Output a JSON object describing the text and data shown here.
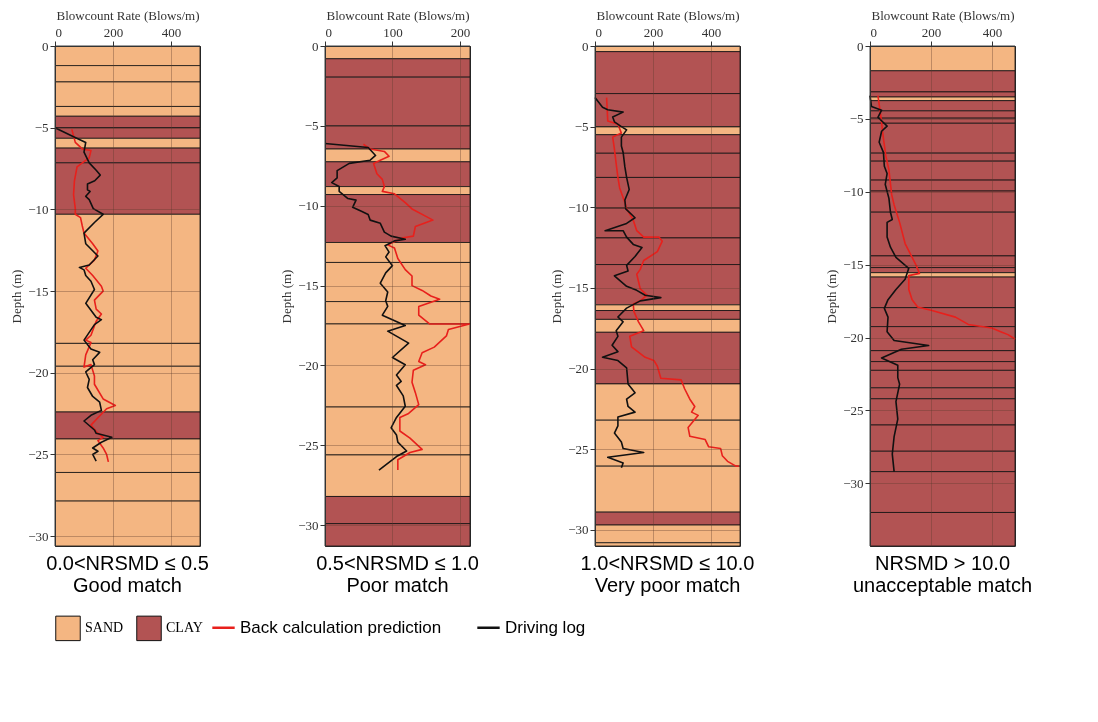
{
  "chart_data": [
    {
      "type": "line",
      "title": "0.0<NRSMD ≤ 0.5",
      "subtitle": "Good match",
      "xlabel": "Blowcount Rate (Blows/m)",
      "ylabel": "Depth (m)",
      "xlim": [
        0,
        500
      ],
      "xticks": [
        0,
        200,
        400
      ],
      "ylim": [
        -30.6,
        0
      ],
      "yticks": [
        0,
        -5,
        -10,
        -15,
        -20,
        -25,
        -30
      ],
      "grid": true,
      "legend": "bottom",
      "annotations": [
        "SAND",
        "CLAY"
      ],
      "bands": [
        {
          "axis": "y",
          "from": 0,
          "to": -1.2,
          "color": "#f4b682"
        },
        {
          "axis": "y",
          "from": -1.2,
          "to": -2.2,
          "color": "#f4b682"
        },
        {
          "axis": "y",
          "from": -2.2,
          "to": -3.7,
          "color": "#f4b682"
        },
        {
          "axis": "y",
          "from": -3.7,
          "to": -4.3,
          "color": "#f4b682"
        },
        {
          "axis": "y",
          "from": -4.3,
          "to": -5.0,
          "color": "#b25353"
        },
        {
          "axis": "y",
          "from": -5.0,
          "to": -5.65,
          "color": "#b25353"
        },
        {
          "axis": "y",
          "from": -5.65,
          "to": -6.25,
          "color": "#f4b682"
        },
        {
          "axis": "y",
          "from": -6.25,
          "to": -7.15,
          "color": "#b25353"
        },
        {
          "axis": "y",
          "from": -7.15,
          "to": -10.3,
          "color": "#b25353"
        },
        {
          "axis": "y",
          "from": -10.3,
          "to": -18.2,
          "color": "#f4b682"
        },
        {
          "axis": "y",
          "from": -18.2,
          "to": -19.6,
          "color": "#f4b682"
        },
        {
          "axis": "y",
          "from": -19.6,
          "to": -22.4,
          "color": "#f4b682"
        },
        {
          "axis": "y",
          "from": -22.4,
          "to": -24.05,
          "color": "#b25353"
        },
        {
          "axis": "y",
          "from": -24.05,
          "to": -26.1,
          "color": "#f4b682"
        },
        {
          "axis": "y",
          "from": -26.1,
          "to": -27.85,
          "color": "#f4b682"
        },
        {
          "axis": "y",
          "from": -27.85,
          "to": -30.6,
          "color": "#f4b682"
        }
      ],
      "series": [
        {
          "name": "Back calculation prediction",
          "color": "#e8201c",
          "x": [
            58,
            70,
            94,
            124,
            118,
            94,
            76,
            67,
            64,
            70,
            70,
            88,
            94,
            100,
            130,
            148,
            136,
            106,
            130,
            160,
            166,
            136,
            142,
            160,
            142,
            124,
            106,
            124,
            106,
            100,
            124,
            136,
            136,
            166,
            208,
            178,
            148,
            124,
            142,
            166,
            148,
            166,
            178,
            184
          ],
          "values": [
            -5.1,
            -5.9,
            -6.3,
            -6.4,
            -6.85,
            -7.15,
            -7.4,
            -8.25,
            -9.1,
            -9.95,
            -10.3,
            -10.5,
            -11.0,
            -11.45,
            -12.1,
            -12.55,
            -13.1,
            -13.6,
            -14.05,
            -14.7,
            -15.0,
            -15.55,
            -16.1,
            -16.4,
            -16.85,
            -17.7,
            -18.0,
            -18.15,
            -18.9,
            -19.65,
            -19.5,
            -20.2,
            -20.7,
            -21.6,
            -22.0,
            -22.2,
            -22.75,
            -23.2,
            -23.6,
            -23.95,
            -24.15,
            -24.6,
            -25.0,
            -25.45
          ]
        },
        {
          "name": "Driving log",
          "color": "#111111",
          "x": [
            0,
            64,
            106,
            100,
            118,
            142,
            156,
            137,
            112,
            112,
            121,
            106,
            118,
            132,
            166,
            136,
            100,
            106,
            148,
            118,
            84,
            100,
            106,
            124,
            136,
            106,
            142,
            160,
            136,
            100,
            124,
            154,
            130,
            136,
            106,
            118,
            112,
            130,
            154,
            160,
            124,
            100,
            136,
            142,
            196,
            160,
            130,
            148,
            130,
            142
          ],
          "values": [
            -5.0,
            -5.55,
            -5.9,
            -6.5,
            -7.15,
            -7.6,
            -7.9,
            -8.25,
            -8.45,
            -8.8,
            -8.9,
            -9.2,
            -9.4,
            -9.95,
            -10.3,
            -10.8,
            -11.45,
            -12.1,
            -12.85,
            -13.4,
            -13.55,
            -13.7,
            -14.05,
            -14.4,
            -14.9,
            -15.75,
            -16.6,
            -16.75,
            -17.05,
            -18.0,
            -18.55,
            -18.75,
            -19.2,
            -19.5,
            -19.95,
            -20.4,
            -20.9,
            -21.45,
            -21.8,
            -22.3,
            -22.6,
            -22.95,
            -23.5,
            -23.7,
            -23.95,
            -24.25,
            -24.6,
            -24.8,
            -25.0,
            -25.4
          ]
        }
      ]
    },
    {
      "type": "line",
      "title": "0.5<NRSMD ≤ 1.0",
      "subtitle": "Poor match",
      "xlabel": "Blowcount Rate (Blows/m)",
      "ylabel": "Depth (m)",
      "xlim": [
        0,
        215
      ],
      "xticks": [
        0,
        100,
        200
      ],
      "ylim": [
        -31.3,
        0
      ],
      "yticks": [
        0,
        -5,
        -10,
        -15,
        -20,
        -25,
        -30
      ],
      "grid": true,
      "legend": "bottom",
      "bands": [
        {
          "axis": "y",
          "from": 0,
          "to": -0.8,
          "color": "#f4b682"
        },
        {
          "axis": "y",
          "from": -0.8,
          "to": -1.95,
          "color": "#b25353"
        },
        {
          "axis": "y",
          "from": -1.95,
          "to": -5.0,
          "color": "#b25353"
        },
        {
          "axis": "y",
          "from": -5.0,
          "to": -6.45,
          "color": "#b25353"
        },
        {
          "axis": "y",
          "from": -6.45,
          "to": -7.25,
          "color": "#f4b682"
        },
        {
          "axis": "y",
          "from": -7.25,
          "to": -8.8,
          "color": "#b25353"
        },
        {
          "axis": "y",
          "from": -8.8,
          "to": -9.3,
          "color": "#f4b682"
        },
        {
          "axis": "y",
          "from": -9.3,
          "to": -12.3,
          "color": "#b25353"
        },
        {
          "axis": "y",
          "from": -12.3,
          "to": -13.55,
          "color": "#f4b682"
        },
        {
          "axis": "y",
          "from": -13.55,
          "to": -16.0,
          "color": "#f4b682"
        },
        {
          "axis": "y",
          "from": -16.0,
          "to": -17.4,
          "color": "#f4b682"
        },
        {
          "axis": "y",
          "from": -17.4,
          "to": -22.6,
          "color": "#f4b682"
        },
        {
          "axis": "y",
          "from": -22.6,
          "to": -25.6,
          "color": "#f4b682"
        },
        {
          "axis": "y",
          "from": -25.6,
          "to": -28.2,
          "color": "#f4b682"
        },
        {
          "axis": "y",
          "from": -28.2,
          "to": -29.9,
          "color": "#b25353"
        },
        {
          "axis": "y",
          "from": -29.9,
          "to": -31.3,
          "color": "#b25353"
        }
      ],
      "series": [
        {
          "name": "Back calculation prediction",
          "color": "#e8201c",
          "x": [
            57,
            67,
            88,
            95,
            82,
            72,
            77,
            85,
            88,
            85,
            103,
            119,
            129,
            149,
            160,
            134,
            131,
            116,
            106,
            93,
            103,
            108,
            119,
            129,
            129,
            144,
            157,
            170,
            139,
            139,
            155,
            196,
            214,
            183,
            180,
            162,
            144,
            139,
            149,
            131,
            129,
            134,
            139,
            124,
            111,
            111,
            126,
            144,
            126,
            108,
            108
          ],
          "values": [
            -6.15,
            -6.45,
            -6.6,
            -6.9,
            -7.15,
            -7.35,
            -8.0,
            -8.35,
            -8.8,
            -9.1,
            -9.25,
            -9.8,
            -10.2,
            -10.65,
            -10.9,
            -11.3,
            -11.9,
            -12.0,
            -12.2,
            -12.45,
            -12.65,
            -13.3,
            -14.0,
            -14.4,
            -15.0,
            -15.3,
            -15.65,
            -15.85,
            -16.3,
            -16.85,
            -17.4,
            -17.4,
            -17.4,
            -17.75,
            -18.15,
            -18.85,
            -19.2,
            -19.75,
            -19.95,
            -20.3,
            -21.05,
            -21.7,
            -22.45,
            -23.0,
            -23.25,
            -24.1,
            -24.55,
            -25.25,
            -25.45,
            -25.9,
            -26.55
          ]
        },
        {
          "name": "Driving log",
          "color": "#111111",
          "x": [
            0,
            64,
            75,
            67,
            36,
            18,
            18,
            10,
            21,
            21,
            34,
            46,
            41,
            54,
            64,
            67,
            82,
            88,
            98,
            119,
            103,
            89,
            95,
            90,
            100,
            90,
            82,
            93,
            90,
            93,
            85,
            119,
            93,
            124,
            100,
            119,
            106,
            113,
            106,
            116,
            119,
            106,
            98,
            106,
            108,
            121,
            106,
            80
          ],
          "values": [
            -6.1,
            -6.35,
            -6.85,
            -7.15,
            -7.35,
            -7.8,
            -8.25,
            -8.55,
            -8.8,
            -9.1,
            -9.55,
            -9.65,
            -10.1,
            -10.35,
            -10.55,
            -10.9,
            -11.1,
            -11.65,
            -11.9,
            -12.1,
            -12.2,
            -12.5,
            -12.9,
            -13.2,
            -13.75,
            -14.2,
            -14.85,
            -15.4,
            -15.95,
            -16.3,
            -16.85,
            -17.5,
            -17.85,
            -18.6,
            -19.5,
            -19.95,
            -20.6,
            -21.0,
            -21.25,
            -21.9,
            -22.55,
            -23.25,
            -23.9,
            -24.35,
            -24.8,
            -25.35,
            -25.7,
            -26.55
          ]
        }
      ]
    },
    {
      "type": "line",
      "title": "1.0<NRSMD ≤ 10.0",
      "subtitle": "Very poor match",
      "xlabel": "Blowcount Rate (Blows/m)",
      "ylabel": "Depth (m)",
      "xlim": [
        0,
        500
      ],
      "xticks": [
        0,
        200,
        400
      ],
      "ylim": [
        -31.0,
        0
      ],
      "yticks": [
        0,
        -5,
        -10,
        -15,
        -20,
        -25,
        -30
      ],
      "grid": true,
      "legend": "bottom",
      "bands": [
        {
          "axis": "y",
          "from": 0,
          "to": -0.35,
          "color": "#f4b682"
        },
        {
          "axis": "y",
          "from": -0.35,
          "to": -2.95,
          "color": "#b25353"
        },
        {
          "axis": "y",
          "from": -2.95,
          "to": -5.0,
          "color": "#b25353"
        },
        {
          "axis": "y",
          "from": -5.0,
          "to": -5.5,
          "color": "#f4b682"
        },
        {
          "axis": "y",
          "from": -5.5,
          "to": -6.65,
          "color": "#b25353"
        },
        {
          "axis": "y",
          "from": -6.65,
          "to": -8.15,
          "color": "#b25353"
        },
        {
          "axis": "y",
          "from": -8.15,
          "to": -10.05,
          "color": "#b25353"
        },
        {
          "axis": "y",
          "from": -10.05,
          "to": -11.9,
          "color": "#b25353"
        },
        {
          "axis": "y",
          "from": -11.9,
          "to": -13.55,
          "color": "#b25353"
        },
        {
          "axis": "y",
          "from": -13.55,
          "to": -16.05,
          "color": "#b25353"
        },
        {
          "axis": "y",
          "from": -16.05,
          "to": -16.4,
          "color": "#f4b682"
        },
        {
          "axis": "y",
          "from": -16.4,
          "to": -16.95,
          "color": "#b25353"
        },
        {
          "axis": "y",
          "from": -16.95,
          "to": -17.75,
          "color": "#f4b682"
        },
        {
          "axis": "y",
          "from": -17.75,
          "to": -20.95,
          "color": "#b25353"
        },
        {
          "axis": "y",
          "from": -20.95,
          "to": -23.2,
          "color": "#f4b682"
        },
        {
          "axis": "y",
          "from": -23.2,
          "to": -26.05,
          "color": "#f4b682"
        },
        {
          "axis": "y",
          "from": -26.05,
          "to": -28.9,
          "color": "#f4b682"
        },
        {
          "axis": "y",
          "from": -28.9,
          "to": -29.7,
          "color": "#b25353"
        },
        {
          "axis": "y",
          "from": -29.7,
          "to": -30.8,
          "color": "#f4b682"
        },
        {
          "axis": "y",
          "from": -30.8,
          "to": -31.0,
          "color": "#f4b682"
        }
      ],
      "series": [
        {
          "name": "Back calculation prediction",
          "color": "#e8201c",
          "x": [
            40,
            44,
            79,
            91,
            61,
            67,
            73,
            79,
            85,
            103,
            109,
            132,
            144,
            168,
            221,
            232,
            215,
            168,
            156,
            144,
            156,
            179,
            156,
            132,
            134,
            150,
            168,
            120,
            126,
            173,
            203,
            215,
            227,
            297,
            309,
            327,
            344,
            333,
            356,
            321,
            327,
            380,
            392,
            433,
            439,
            457,
            486,
            496
          ],
          "values": [
            -3.2,
            -4.65,
            -4.85,
            -5.4,
            -5.65,
            -6.4,
            -7.3,
            -8.15,
            -8.8,
            -9.7,
            -10.1,
            -10.8,
            -11.45,
            -11.85,
            -11.85,
            -12.1,
            -12.75,
            -13.3,
            -13.85,
            -14.15,
            -15.05,
            -15.45,
            -15.8,
            -16.0,
            -16.45,
            -17.1,
            -17.65,
            -18.0,
            -18.65,
            -19.3,
            -19.5,
            -19.85,
            -20.6,
            -20.7,
            -21.25,
            -21.9,
            -22.35,
            -22.7,
            -22.9,
            -23.65,
            -24.2,
            -24.4,
            -24.85,
            -24.95,
            -25.4,
            -25.75,
            -26.05,
            -26.05
          ]
        },
        {
          "name": "Driving log",
          "color": "#111111",
          "x": [
            0,
            26,
            44,
            97,
            61,
            67,
            91,
            109,
            91,
            91,
            97,
            103,
            109,
            118,
            103,
            106,
            138,
            109,
            35,
            97,
            109,
            132,
            162,
            138,
            109,
            114,
            67,
            109,
            144,
            173,
            227,
            156,
            109,
            79,
            97,
            73,
            79,
            59,
            79,
            26,
            79,
            109,
            114,
            138,
            109,
            114,
            138,
            79,
            79,
            67,
            91,
            97,
            168,
            44,
            97,
            91
          ],
          "values": [
            -3.2,
            -3.8,
            -3.95,
            -4.1,
            -4.4,
            -4.7,
            -5.0,
            -5.2,
            -5.65,
            -6.2,
            -6.6,
            -7.5,
            -8.15,
            -8.9,
            -9.55,
            -10.1,
            -10.65,
            -11.0,
            -11.45,
            -11.45,
            -11.85,
            -12.3,
            -12.5,
            -13.05,
            -13.6,
            -13.95,
            -14.25,
            -14.9,
            -15.15,
            -15.45,
            -15.6,
            -15.8,
            -16.25,
            -16.8,
            -17.1,
            -17.65,
            -18.0,
            -18.55,
            -18.95,
            -19.3,
            -19.5,
            -19.95,
            -20.95,
            -21.5,
            -21.9,
            -22.35,
            -22.7,
            -23.0,
            -23.55,
            -24.0,
            -24.55,
            -24.95,
            -25.2,
            -25.5,
            -25.85,
            -26.15
          ]
        }
      ]
    },
    {
      "type": "line",
      "title": "NRSMD > 10.0",
      "subtitle": "unacceptable match",
      "xlabel": "Blowcount Rate (Blows/m)",
      "ylabel": "Depth (m)",
      "xlim": [
        0,
        475
      ],
      "xticks": [
        0,
        200,
        400
      ],
      "ylim": [
        -34.3,
        0
      ],
      "yticks": [
        0,
        -5,
        -10,
        -15,
        -20,
        -25,
        -30
      ],
      "grid": true,
      "legend": "bottom",
      "bands": [
        {
          "axis": "y",
          "from": 0,
          "to": -1.7,
          "color": "#f4b682"
        },
        {
          "axis": "y",
          "from": -1.7,
          "to": -3.15,
          "color": "#b25353"
        },
        {
          "axis": "y",
          "from": -3.15,
          "to": -3.5,
          "color": "#b25353"
        },
        {
          "axis": "y",
          "from": -3.5,
          "to": -3.75,
          "color": "#f4b682"
        },
        {
          "axis": "y",
          "from": -3.75,
          "to": -4.45,
          "color": "#b25353"
        },
        {
          "axis": "y",
          "from": -4.45,
          "to": -4.95,
          "color": "#b25353"
        },
        {
          "axis": "y",
          "from": -4.95,
          "to": -5.3,
          "color": "#b25353"
        },
        {
          "axis": "y",
          "from": -5.3,
          "to": -7.35,
          "color": "#b25353"
        },
        {
          "axis": "y",
          "from": -7.35,
          "to": -7.9,
          "color": "#b25353"
        },
        {
          "axis": "y",
          "from": -7.9,
          "to": -9.2,
          "color": "#b25353"
        },
        {
          "axis": "y",
          "from": -9.2,
          "to": -9.95,
          "color": "#b25353"
        },
        {
          "axis": "y",
          "from": -9.95,
          "to": -11.4,
          "color": "#b25353"
        },
        {
          "axis": "y",
          "from": -11.4,
          "to": -14.4,
          "color": "#b25353"
        },
        {
          "axis": "y",
          "from": -14.4,
          "to": -15.2,
          "color": "#b25353"
        },
        {
          "axis": "y",
          "from": -15.2,
          "to": -15.55,
          "color": "#b25353"
        },
        {
          "axis": "y",
          "from": -15.55,
          "to": -15.85,
          "color": "#f4b682"
        },
        {
          "axis": "y",
          "from": -15.85,
          "to": -17.95,
          "color": "#b25353"
        },
        {
          "axis": "y",
          "from": -17.95,
          "to": -19.25,
          "color": "#b25353"
        },
        {
          "axis": "y",
          "from": -19.25,
          "to": -20.9,
          "color": "#b25353"
        },
        {
          "axis": "y",
          "from": -20.9,
          "to": -21.65,
          "color": "#b25353"
        },
        {
          "axis": "y",
          "from": -21.65,
          "to": -22.25,
          "color": "#b25353"
        },
        {
          "axis": "y",
          "from": -22.25,
          "to": -23.45,
          "color": "#b25353"
        },
        {
          "axis": "y",
          "from": -23.45,
          "to": -24.2,
          "color": "#b25353"
        },
        {
          "axis": "y",
          "from": -24.2,
          "to": -26.0,
          "color": "#b25353"
        },
        {
          "axis": "y",
          "from": -26.0,
          "to": -27.8,
          "color": "#b25353"
        },
        {
          "axis": "y",
          "from": -27.8,
          "to": -29.2,
          "color": "#b25353"
        },
        {
          "axis": "y",
          "from": -29.2,
          "to": -32.0,
          "color": "#b25353"
        },
        {
          "axis": "y",
          "from": -32.0,
          "to": -34.3,
          "color": "#b25353"
        }
      ],
      "series": [
        {
          "name": "Back calculation prediction",
          "color": "#e8201c",
          "x": [
            26,
            36,
            44,
            52,
            62,
            71,
            79,
            97,
            115,
            138,
            150,
            162,
            127,
            127,
            138,
            156,
            203,
            280,
            322,
            399,
            428,
            452,
            475
          ],
          "values": [
            -3.4,
            -4.9,
            -6.35,
            -7.55,
            -8.5,
            -10.2,
            -10.9,
            -12.1,
            -13.55,
            -14.5,
            -15.0,
            -15.6,
            -15.75,
            -16.7,
            -17.4,
            -17.9,
            -18.15,
            -18.6,
            -19.1,
            -19.35,
            -19.6,
            -19.8,
            -20.1
          ]
        },
        {
          "name": "Driving log",
          "color": "#111111",
          "x": [
            0,
            5,
            38,
            26,
            44,
            56,
            38,
            30,
            44,
            47,
            56,
            50,
            62,
            67,
            73,
            56,
            56,
            67,
            85,
            127,
            115,
            85,
            59,
            47,
            59,
            56,
            79,
            192,
            103,
            38,
            91,
            91,
            97,
            85,
            91,
            79,
            73,
            79
          ],
          "values": [
            -3.4,
            -4.15,
            -4.4,
            -4.9,
            -5.25,
            -5.5,
            -5.85,
            -6.6,
            -7.3,
            -8.25,
            -8.75,
            -9.5,
            -10.45,
            -11.4,
            -11.9,
            -12.1,
            -13.1,
            -13.8,
            -14.5,
            -15.25,
            -16.0,
            -16.7,
            -17.4,
            -18.0,
            -18.6,
            -19.6,
            -20.2,
            -20.55,
            -20.8,
            -21.4,
            -21.9,
            -22.75,
            -23.2,
            -24.4,
            -25.6,
            -26.8,
            -28.0,
            -29.2
          ]
        }
      ]
    }
  ]
}
